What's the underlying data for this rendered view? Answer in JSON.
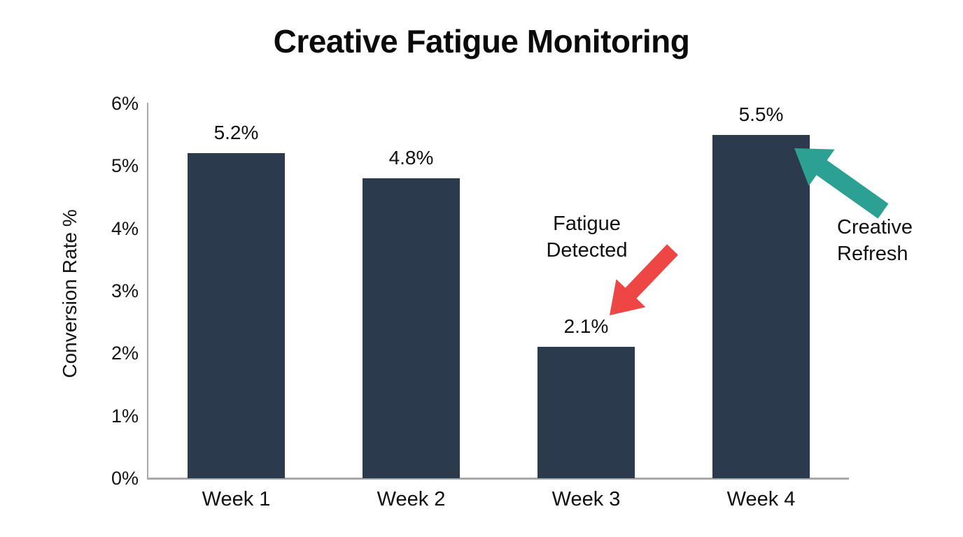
{
  "chart_data": {
    "type": "bar",
    "title": "Creative Fatigue Monitoring",
    "ylabel": "Conversion Rate %",
    "xlabel": "",
    "categories": [
      "Week 1",
      "Week 2",
      "Week 3",
      "Week 4"
    ],
    "values": [
      5.2,
      4.8,
      2.1,
      5.5
    ],
    "value_labels": [
      "5.2%",
      "4.8%",
      "2.1%",
      "5.5%"
    ],
    "ylim": [
      0,
      6
    ],
    "yticks": [
      "0%",
      "1%",
      "2%",
      "3%",
      "4%",
      "5%",
      "6%"
    ],
    "grid": false,
    "legend": null,
    "annotations": [
      {
        "lines": [
          "Fatigue",
          "Detected"
        ],
        "target_category": "Week 3",
        "arrow": {
          "color": "#ee4545",
          "from": [
            961,
            357
          ],
          "to": [
            871,
            451
          ]
        }
      },
      {
        "lines": [
          "Creative",
          "Refresh"
        ],
        "target_category": "Week 4",
        "arrow": {
          "color": "#2ca193",
          "from": [
            1262,
            302
          ],
          "to": [
            1135,
            212
          ]
        }
      }
    ],
    "colors": {
      "bar": "#2b3b4d",
      "axis": "#a9a9a9",
      "fatigue_arrow": "#ee4545",
      "refresh_arrow": "#2ca193",
      "text": "#101010",
      "background": "#ffffff"
    }
  }
}
